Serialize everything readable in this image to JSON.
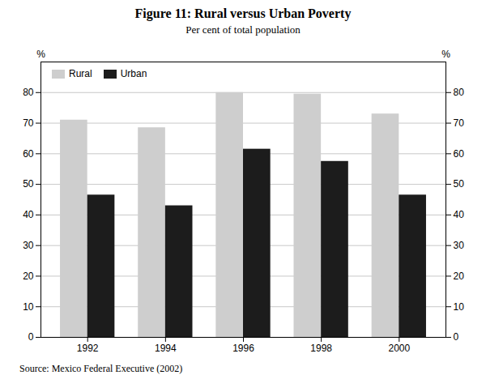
{
  "chart_data": {
    "type": "bar",
    "title": "Figure 11: Rural versus Urban Poverty",
    "subtitle": "Per cent of total population",
    "source": "Source: Mexico Federal Executive (2002)",
    "categories": [
      "1992",
      "1994",
      "1996",
      "1998",
      "2000"
    ],
    "series": [
      {
        "name": "Rural",
        "color": "#cecece",
        "values": [
          71,
          68.5,
          80,
          79.5,
          73
        ]
      },
      {
        "name": "Urban",
        "color": "#1c1c1c",
        "values": [
          46.5,
          43,
          61.5,
          57.5,
          46.5
        ]
      }
    ],
    "ylabel": "%",
    "ylim": [
      0,
      90
    ],
    "yticks": [
      0,
      10,
      20,
      30,
      40,
      50,
      60,
      70,
      80
    ],
    "y2label": "%",
    "y2lim": [
      0,
      90
    ],
    "y2ticks": [
      0,
      10,
      20,
      30,
      40,
      50,
      60,
      70,
      80
    ],
    "grid": true,
    "legend": "upper left"
  }
}
